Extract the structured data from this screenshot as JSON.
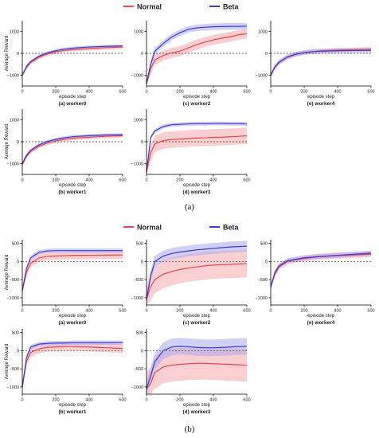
{
  "legend_a": [
    {
      "name": "Normal",
      "color": "#e8474e"
    },
    {
      "name": "Beta",
      "color": "#3b3bd6"
    }
  ],
  "legend_b": [
    {
      "name": "Normal",
      "color": "#e8474e"
    },
    {
      "name": "Beta",
      "color": "#3b3bd6"
    }
  ],
  "figure_captions": [
    "(a)",
    "(b)"
  ],
  "y_axis_label": "Average Reward",
  "chart_data": [
    {
      "group": "a",
      "type": "line",
      "title": "(a) worker0",
      "xlabel": "episode step",
      "ylabel": "Average Reward",
      "xlim": [
        0,
        600
      ],
      "ylim": [
        -1500,
        1500
      ],
      "xticks": [
        0,
        200,
        400,
        600
      ],
      "yticks": [
        -1000,
        0,
        1000
      ],
      "reference_line": 0,
      "x": [
        0,
        25,
        50,
        100,
        150,
        200,
        250,
        300,
        400,
        500,
        600
      ],
      "series": [
        {
          "name": "Normal",
          "values": [
            -1000,
            -650,
            -420,
            -180,
            -30,
            70,
            130,
            170,
            220,
            260,
            290
          ],
          "band": 90
        },
        {
          "name": "Beta",
          "values": [
            -1000,
            -600,
            -380,
            -130,
            20,
            120,
            190,
            240,
            290,
            320,
            340
          ],
          "band": 70
        }
      ]
    },
    {
      "group": "a",
      "type": "line",
      "title": "(b) worker1",
      "xlabel": "episode step",
      "ylabel": "Average Reward",
      "xlim": [
        0,
        600
      ],
      "ylim": [
        -1500,
        1500
      ],
      "xticks": [
        0,
        200,
        400,
        600
      ],
      "yticks": [
        -1000,
        0,
        1000
      ],
      "reference_line": 0,
      "x": [
        0,
        25,
        50,
        100,
        150,
        200,
        250,
        300,
        400,
        500,
        600
      ],
      "series": [
        {
          "name": "Normal",
          "values": [
            -1050,
            -680,
            -450,
            -200,
            -60,
            40,
            110,
            160,
            210,
            250,
            280
          ],
          "band": 90
        },
        {
          "name": "Beta",
          "values": [
            -1000,
            -620,
            -390,
            -140,
            10,
            110,
            180,
            230,
            280,
            310,
            320
          ],
          "band": 70
        }
      ]
    },
    {
      "group": "a",
      "type": "line",
      "title": "(c) worker2",
      "xlabel": "episode step",
      "ylabel": "Average Reward",
      "xlim": [
        0,
        600
      ],
      "ylim": [
        -1500,
        1500
      ],
      "xticks": [
        0,
        200,
        400,
        600
      ],
      "yticks": [
        -1000,
        0,
        1000
      ],
      "reference_line": 0,
      "x": [
        0,
        25,
        50,
        100,
        150,
        200,
        250,
        300,
        350,
        400,
        450,
        500,
        550,
        600
      ],
      "series": [
        {
          "name": "Normal",
          "values": [
            -1400,
            -700,
            -300,
            -100,
            20,
            100,
            250,
            400,
            520,
            620,
            700,
            760,
            850,
            900
          ],
          "band": 230
        },
        {
          "name": "Beta",
          "values": [
            -1400,
            -500,
            100,
            450,
            750,
            950,
            1100,
            1170,
            1200,
            1220,
            1230,
            1240,
            1240,
            1250
          ],
          "band": 150
        }
      ]
    },
    {
      "group": "a",
      "type": "line",
      "title": "(d) worker3",
      "xlabel": "episode step",
      "ylabel": "Average Reward",
      "xlim": [
        0,
        600
      ],
      "ylim": [
        -1500,
        1500
      ],
      "xticks": [
        0,
        200,
        400,
        600
      ],
      "yticks": [
        -1000,
        0,
        1000
      ],
      "reference_line": 0,
      "x": [
        0,
        25,
        50,
        100,
        150,
        200,
        250,
        300,
        350,
        400,
        450,
        500,
        550,
        600
      ],
      "series": [
        {
          "name": "Normal",
          "values": [
            -1400,
            -500,
            -100,
            50,
            100,
            120,
            150,
            170,
            180,
            200,
            210,
            230,
            250,
            270
          ],
          "band": 380
        },
        {
          "name": "Beta",
          "values": [
            -1400,
            200,
            500,
            700,
            780,
            800,
            820,
            830,
            830,
            840,
            840,
            830,
            830,
            820
          ],
          "band": 90
        }
      ]
    },
    {
      "group": "a",
      "type": "line",
      "title": "(e) worker4",
      "xlabel": "episode step",
      "ylabel": "Average Reward",
      "xlim": [
        0,
        600
      ],
      "ylim": [
        -1500,
        1500
      ],
      "xticks": [
        0,
        200,
        400,
        600
      ],
      "yticks": [
        -1000,
        0,
        1000
      ],
      "reference_line": 0,
      "x": [
        0,
        25,
        50,
        100,
        150,
        200,
        250,
        300,
        400,
        500,
        600
      ],
      "series": [
        {
          "name": "Normal",
          "values": [
            -1000,
            -650,
            -420,
            -180,
            -50,
            30,
            80,
            110,
            150,
            170,
            190
          ],
          "band": 100
        },
        {
          "name": "Beta",
          "values": [
            -1000,
            -620,
            -400,
            -160,
            -40,
            40,
            80,
            100,
            120,
            130,
            140
          ],
          "band": 110
        }
      ]
    },
    {
      "group": "b",
      "type": "line",
      "title": "(a) worker0",
      "xlabel": "episode step",
      "ylabel": "Average Reward",
      "xlim": [
        0,
        600
      ],
      "ylim": [
        -1200,
        600
      ],
      "xticks": [
        0,
        200,
        400,
        600
      ],
      "yticks": [
        -1000,
        -500,
        0,
        500
      ],
      "reference_line": 0,
      "x": [
        0,
        25,
        50,
        100,
        150,
        200,
        250,
        300,
        400,
        500,
        600
      ],
      "series": [
        {
          "name": "Normal",
          "values": [
            -800,
            -300,
            -50,
            100,
            140,
            150,
            160,
            170,
            170,
            175,
            180
          ],
          "band": 110
        },
        {
          "name": "Beta",
          "values": [
            -800,
            -200,
            100,
            250,
            290,
            300,
            300,
            300,
            300,
            300,
            300
          ],
          "band": 60
        }
      ]
    },
    {
      "group": "b",
      "type": "line",
      "title": "(b) worker1",
      "xlabel": "episode step",
      "ylabel": "Average Reward",
      "xlim": [
        0,
        600
      ],
      "ylim": [
        -1200,
        600
      ],
      "xticks": [
        0,
        200,
        400,
        600
      ],
      "yticks": [
        -1000,
        -500,
        0,
        500
      ],
      "reference_line": 0,
      "x": [
        0,
        25,
        50,
        100,
        150,
        200,
        250,
        300,
        400,
        500,
        600
      ],
      "series": [
        {
          "name": "Normal",
          "values": [
            -1000,
            -300,
            -50,
            50,
            90,
            100,
            110,
            110,
            100,
            80,
            60
          ],
          "band": 120
        },
        {
          "name": "Beta",
          "values": [
            -1000,
            -200,
            100,
            180,
            200,
            210,
            210,
            220,
            220,
            220,
            220
          ],
          "band": 60
        }
      ]
    },
    {
      "group": "b",
      "type": "line",
      "title": "(c) worker2",
      "xlabel": "episode step",
      "ylabel": "Average Reward",
      "xlim": [
        0,
        600
      ],
      "ylim": [
        -1200,
        600
      ],
      "xticks": [
        0,
        200,
        400,
        600
      ],
      "yticks": [
        -1000,
        -500,
        0,
        500
      ],
      "reference_line": 0,
      "x": [
        0,
        25,
        50,
        100,
        150,
        200,
        250,
        300,
        350,
        400,
        450,
        500,
        550,
        600
      ],
      "series": [
        {
          "name": "Normal",
          "values": [
            -1050,
            -700,
            -500,
            -350,
            -280,
            -220,
            -180,
            -150,
            -120,
            -100,
            -90,
            -80,
            -70,
            -60
          ],
          "band": 380
        },
        {
          "name": "Beta",
          "values": [
            -1050,
            -400,
            0,
            150,
            220,
            260,
            290,
            320,
            340,
            360,
            380,
            400,
            410,
            420
          ],
          "band": 150
        }
      ]
    },
    {
      "group": "b",
      "type": "line",
      "title": "(d) worker3",
      "xlabel": "episode step",
      "ylabel": "Average Reward",
      "xlim": [
        0,
        600
      ],
      "ylim": [
        -1200,
        600
      ],
      "xticks": [
        0,
        200,
        400,
        600
      ],
      "yticks": [
        -1000,
        -500,
        0,
        500
      ],
      "reference_line": 0,
      "x": [
        0,
        25,
        50,
        100,
        150,
        200,
        250,
        300,
        350,
        400,
        450,
        500,
        550,
        600
      ],
      "series": [
        {
          "name": "Normal",
          "values": [
            -1050,
            -900,
            -600,
            -450,
            -400,
            -380,
            -360,
            -350,
            -350,
            -360,
            -370,
            -380,
            -390,
            -400
          ],
          "band": 450
        },
        {
          "name": "Beta",
          "values": [
            -1050,
            -700,
            -300,
            0,
            100,
            120,
            110,
            90,
            80,
            80,
            90,
            100,
            110,
            120
          ],
          "band": 230
        }
      ]
    },
    {
      "group": "b",
      "type": "line",
      "title": "(e) worker4",
      "xlabel": "episode step",
      "ylabel": "Average Reward",
      "xlim": [
        0,
        600
      ],
      "ylim": [
        -1200,
        600
      ],
      "xticks": [
        0,
        200,
        400,
        600
      ],
      "yticks": [
        -1000,
        -500,
        0,
        500
      ],
      "reference_line": 0,
      "x": [
        0,
        25,
        50,
        100,
        150,
        200,
        250,
        300,
        400,
        500,
        600
      ],
      "series": [
        {
          "name": "Normal",
          "values": [
            -700,
            -350,
            -150,
            0,
            50,
            80,
            110,
            130,
            160,
            180,
            200
          ],
          "band": 80
        },
        {
          "name": "Beta",
          "values": [
            -700,
            -300,
            -120,
            20,
            60,
            100,
            120,
            140,
            170,
            200,
            230
          ],
          "band": 70
        }
      ]
    }
  ]
}
